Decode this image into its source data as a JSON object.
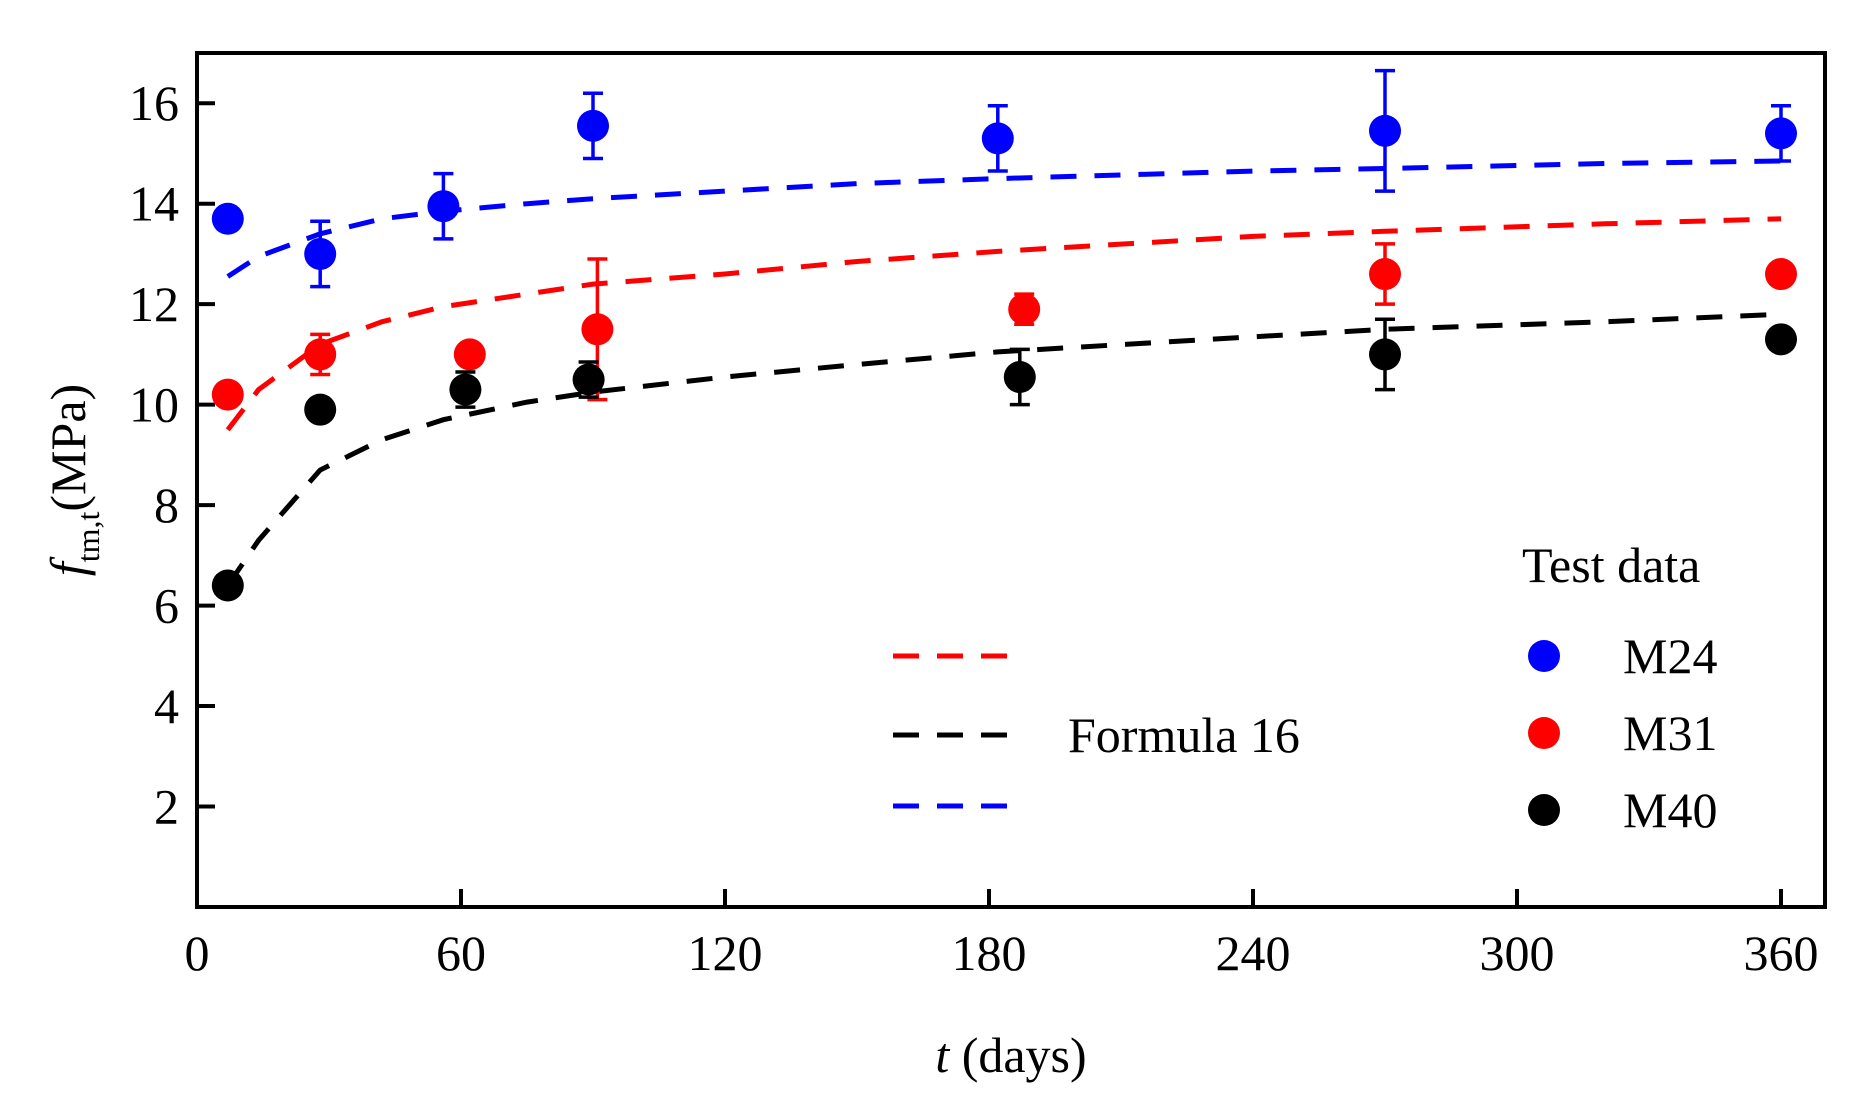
{
  "chart_data": {
    "type": "scatter",
    "xlabel_italic": "t",
    "xlabel_rest": " (days)",
    "ylabel_f": "f",
    "ylabel_sub": "tm,t",
    "ylabel_unit": "(MPa)",
    "xlim": [
      0,
      370
    ],
    "ylim": [
      0,
      17
    ],
    "xticks": [
      0,
      60,
      120,
      180,
      240,
      300,
      360
    ],
    "yticks": [
      2,
      4,
      6,
      8,
      10,
      12,
      14,
      16
    ],
    "grid": false,
    "legend_title": "Test data",
    "formula_label": "Formula 16",
    "series": [
      {
        "name": "M24",
        "color": "#0000ff",
        "points": [
          {
            "x": 7,
            "y": 13.7,
            "err": 0.0
          },
          {
            "x": 28,
            "y": 13.0,
            "err": 0.65
          },
          {
            "x": 56,
            "y": 13.95,
            "err": 0.65
          },
          {
            "x": 90,
            "y": 15.55,
            "err": 0.65
          },
          {
            "x": 182,
            "y": 15.3,
            "err": 0.65
          },
          {
            "x": 270,
            "y": 15.45,
            "err": 1.2
          },
          {
            "x": 360,
            "y": 15.4,
            "err": 0.55
          }
        ],
        "fit": [
          [
            7,
            12.55
          ],
          [
            14,
            12.95
          ],
          [
            28,
            13.4
          ],
          [
            42,
            13.7
          ],
          [
            56,
            13.85
          ],
          [
            75,
            14.0
          ],
          [
            90,
            14.1
          ],
          [
            120,
            14.25
          ],
          [
            150,
            14.4
          ],
          [
            182,
            14.5
          ],
          [
            240,
            14.65
          ],
          [
            270,
            14.7
          ],
          [
            320,
            14.8
          ],
          [
            360,
            14.85
          ]
        ]
      },
      {
        "name": "M31",
        "color": "#ff0000",
        "points": [
          {
            "x": 7,
            "y": 10.2,
            "err": 0.0
          },
          {
            "x": 28,
            "y": 11.0,
            "err": 0.4
          },
          {
            "x": 62,
            "y": 11.0,
            "err": 0.0
          },
          {
            "x": 91,
            "y": 11.5,
            "err": 1.4
          },
          {
            "x": 188,
            "y": 11.9,
            "err": 0.3
          },
          {
            "x": 270,
            "y": 12.6,
            "err": 0.6
          },
          {
            "x": 360,
            "y": 12.6,
            "err": 0.0
          }
        ],
        "fit": [
          [
            7,
            9.5
          ],
          [
            14,
            10.3
          ],
          [
            28,
            11.2
          ],
          [
            42,
            11.65
          ],
          [
            56,
            11.95
          ],
          [
            75,
            12.2
          ],
          [
            90,
            12.4
          ],
          [
            120,
            12.6
          ],
          [
            150,
            12.85
          ],
          [
            182,
            13.05
          ],
          [
            240,
            13.35
          ],
          [
            270,
            13.45
          ],
          [
            320,
            13.6
          ],
          [
            360,
            13.7
          ]
        ]
      },
      {
        "name": "M40",
        "color": "#000000",
        "points": [
          {
            "x": 7,
            "y": 6.4,
            "err": 0.0
          },
          {
            "x": 28,
            "y": 9.9,
            "err": 0.0
          },
          {
            "x": 61,
            "y": 10.3,
            "err": 0.35
          },
          {
            "x": 89,
            "y": 10.5,
            "err": 0.35
          },
          {
            "x": 187,
            "y": 10.55,
            "err": 0.55
          },
          {
            "x": 270,
            "y": 11.0,
            "err": 0.7
          },
          {
            "x": 360,
            "y": 11.3,
            "err": 0.0
          }
        ],
        "fit": [
          [
            7,
            6.4
          ],
          [
            14,
            7.3
          ],
          [
            28,
            8.7
          ],
          [
            42,
            9.3
          ],
          [
            56,
            9.7
          ],
          [
            75,
            10.05
          ],
          [
            90,
            10.25
          ],
          [
            120,
            10.55
          ],
          [
            150,
            10.8
          ],
          [
            182,
            11.05
          ],
          [
            240,
            11.35
          ],
          [
            270,
            11.5
          ],
          [
            320,
            11.65
          ],
          [
            360,
            11.8
          ]
        ]
      }
    ]
  }
}
